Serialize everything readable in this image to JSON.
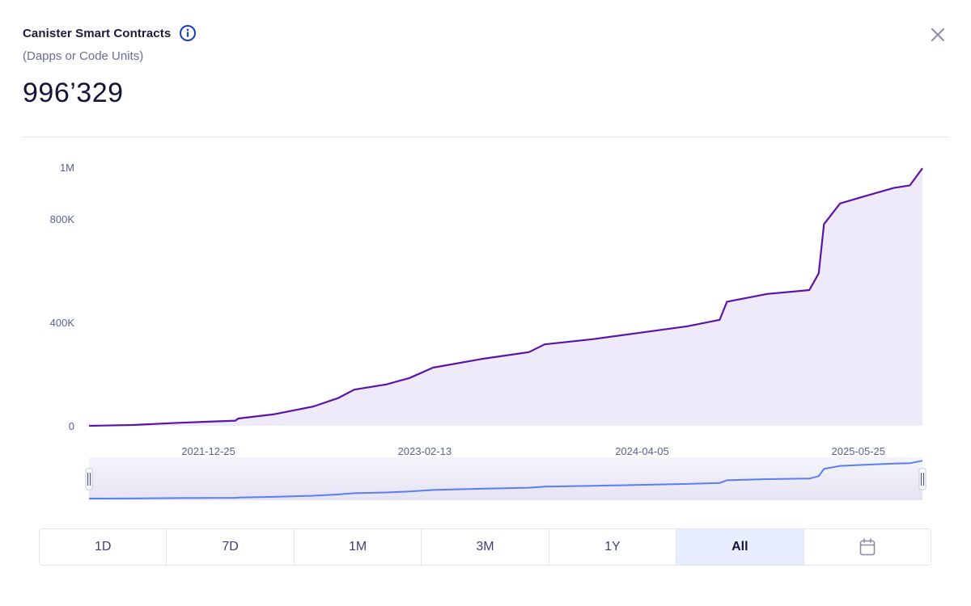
{
  "header": {
    "title": "Canister Smart Contracts",
    "subtitle": "(Dapps or Code Units)",
    "value": "996’329",
    "info_icon": "info-circle-icon",
    "close_icon": "close-icon"
  },
  "colors": {
    "line": "#5b13a8",
    "area": "#efeafa",
    "navigator_line": "#5b7ef0",
    "navigator_bg": "#eef0fa",
    "accent": "#1f3fb0"
  },
  "chart_data": {
    "type": "area",
    "title": "Canister Smart Contracts",
    "xlabel": "",
    "ylabel": "",
    "ylim": [
      0,
      1000000
    ],
    "y_ticks": [
      {
        "label": "0",
        "value": 0
      },
      {
        "label": "400K",
        "value": 400000
      },
      {
        "label": "800K",
        "value": 800000
      },
      {
        "label": "1M",
        "value": 1000000
      }
    ],
    "x_range": [
      "2021-05-10",
      "2025-09-25"
    ],
    "x_ticks": [
      "2021-12-25",
      "2023-02-13",
      "2024-04-05",
      "2025-05-25"
    ],
    "series": [
      {
        "name": "Canister Smart Contracts",
        "points": [
          [
            "2021-05-10",
            0
          ],
          [
            "2021-08-01",
            3000
          ],
          [
            "2021-11-01",
            12000
          ],
          [
            "2022-02-15",
            20000
          ],
          [
            "2022-02-20",
            28000
          ],
          [
            "2022-05-01",
            45000
          ],
          [
            "2022-07-15",
            75000
          ],
          [
            "2022-09-01",
            108000
          ],
          [
            "2022-10-01",
            140000
          ],
          [
            "2022-12-01",
            160000
          ],
          [
            "2023-01-15",
            185000
          ],
          [
            "2023-03-01",
            225000
          ],
          [
            "2023-06-01",
            258000
          ],
          [
            "2023-09-01",
            285000
          ],
          [
            "2023-10-01",
            315000
          ],
          [
            "2024-01-01",
            335000
          ],
          [
            "2024-04-01",
            360000
          ],
          [
            "2024-07-01",
            385000
          ],
          [
            "2024-09-01",
            410000
          ],
          [
            "2024-09-15",
            480000
          ],
          [
            "2024-12-01",
            510000
          ],
          [
            "2025-02-20",
            525000
          ],
          [
            "2025-03-10",
            590000
          ],
          [
            "2025-03-20",
            780000
          ],
          [
            "2025-04-20",
            860000
          ],
          [
            "2025-06-01",
            885000
          ],
          [
            "2025-08-01",
            920000
          ],
          [
            "2025-09-01",
            930000
          ],
          [
            "2025-09-25",
            996329
          ]
        ]
      }
    ],
    "navigator": true
  },
  "tabs": [
    {
      "label": "1D",
      "active": false
    },
    {
      "label": "7D",
      "active": false
    },
    {
      "label": "1M",
      "active": false
    },
    {
      "label": "3M",
      "active": false
    },
    {
      "label": "1Y",
      "active": false
    },
    {
      "label": "All",
      "active": true
    },
    {
      "label": "",
      "icon": "calendar-icon",
      "active": false
    }
  ]
}
